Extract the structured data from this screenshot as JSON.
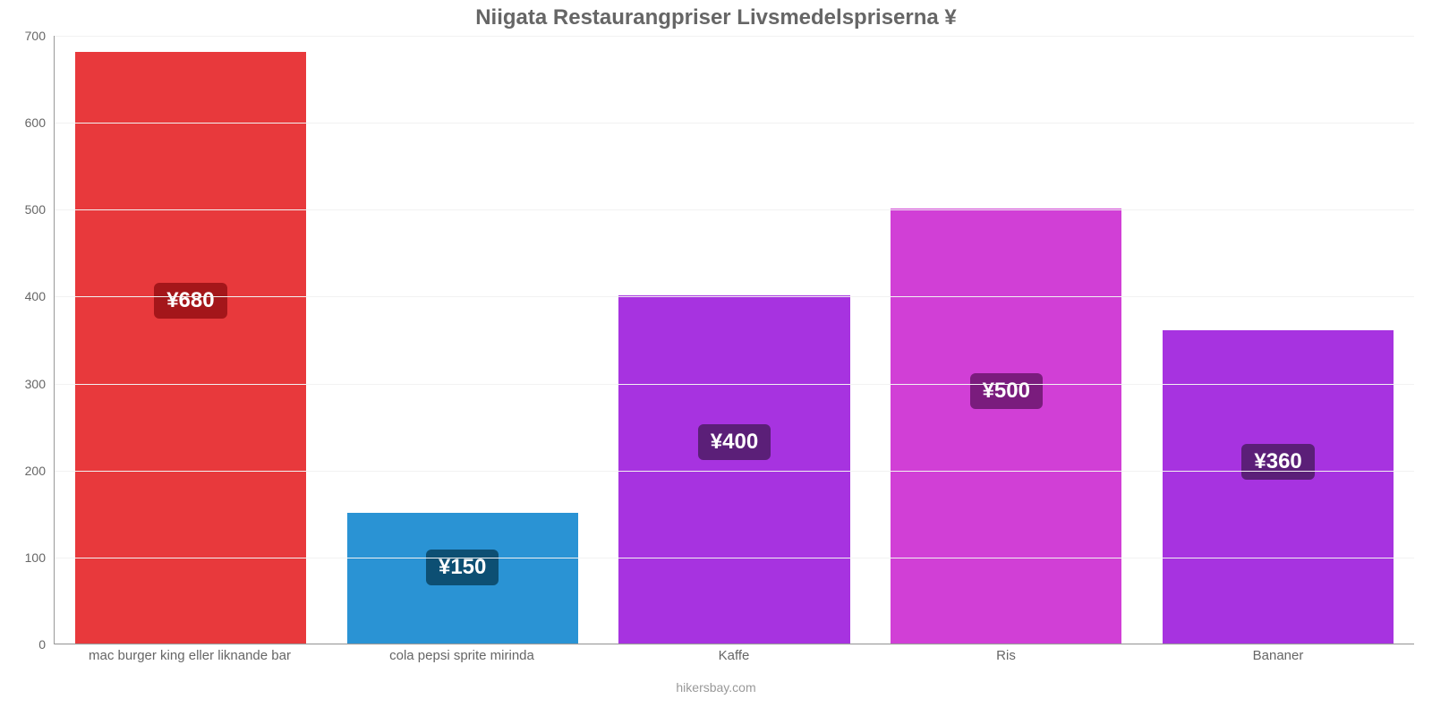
{
  "chart": {
    "type": "bar",
    "title": "Niigata Restaurangpriser Livsmedelspriserna ¥",
    "title_fontsize": 24,
    "title_color": "#666666",
    "background_color": "#ffffff",
    "grid_color": "#f2f2f2",
    "axis_color": "#999999",
    "tick_color": "#666666",
    "tick_fontsize": 14,
    "xlabel_fontsize": 15,
    "xlabel_color": "#666666",
    "bar_width": 0.85,
    "ylim": [
      0,
      700
    ],
    "ytick_step": 100,
    "value_label_fontsize": 24,
    "attribution": "hikersbay.com",
    "attribution_color": "#999999",
    "attribution_fontsize": 14,
    "categories": [
      "mac burger king eller liknande bar",
      "cola pepsi sprite mirinda",
      "Kaffe",
      "Ris",
      "Bananer"
    ],
    "values": [
      680,
      150,
      400,
      500,
      360
    ],
    "bar_colors": [
      "#e8393c",
      "#2a93d4",
      "#a733e0",
      "#d13fd6",
      "#a733e0"
    ],
    "badge_colors": [
      "#a4161a",
      "#0d4f73",
      "#5b1f78",
      "#7a1c7d",
      "#5b1f78"
    ],
    "value_labels": [
      "¥680",
      "¥150",
      "¥400",
      "¥500",
      "¥360"
    ]
  }
}
